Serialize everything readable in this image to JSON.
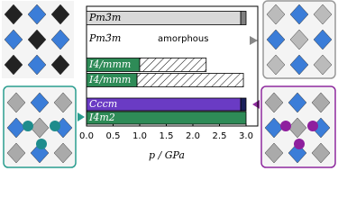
{
  "chart_data": {
    "type": "range-bar",
    "xlabel": "p / GPa",
    "xlim": [
      0,
      3
    ],
    "xticks": [
      {
        "value": 0,
        "label": "0.0"
      },
      {
        "value": 0.5,
        "label": "0.5"
      },
      {
        "value": 1,
        "label": "1.0"
      },
      {
        "value": 1.5,
        "label": "1.5"
      },
      {
        "value": 2,
        "label": "2.0"
      },
      {
        "value": 2.5,
        "label": "2.5"
      },
      {
        "value": 3,
        "label": "3.0"
      }
    ],
    "rows": [
      {
        "labels": [
          "Pm3̄m"
        ],
        "text_color": "#000000",
        "segments": [
          {
            "from": 0,
            "to": 2.9,
            "color": "#d9d9d9",
            "style": "solid"
          },
          {
            "from": 2.9,
            "to": 3,
            "color": "#808080",
            "style": "solid"
          }
        ]
      },
      {
        "labels": [
          "Pm3̄m",
          "amorphous"
        ],
        "text_color": "#000000",
        "segments": []
      },
      {
        "labels": [
          "I4/mmm"
        ],
        "text_color": "#ffffff",
        "segments": [
          {
            "from": 0,
            "to": 1,
            "color": "#2e8b57",
            "style": "solid"
          },
          {
            "from": 1,
            "to": 2.25,
            "color": "#000000",
            "style": "hatched"
          }
        ]
      },
      {
        "labels": [
          "I4/mmm"
        ],
        "text_color": "#ffffff",
        "segments": [
          {
            "from": 0,
            "to": 0.95,
            "color": "#2e8b57",
            "style": "solid"
          },
          {
            "from": 0.95,
            "to": 2.95,
            "color": "#000000",
            "style": "hatched"
          }
        ]
      },
      {
        "labels": [
          "Cccm"
        ],
        "text_color": "#ffffff",
        "segments": [
          {
            "from": 0,
            "to": 2.9,
            "color": "#6a3bc4",
            "style": "solid"
          },
          {
            "from": 2.9,
            "to": 3,
            "color": "#1a1f5c",
            "style": "solid"
          }
        ]
      },
      {
        "labels": [
          "I4̄m2"
        ],
        "text_color": "#ffffff",
        "segments": [
          {
            "from": 0,
            "to": 3,
            "color": "#2e8b57",
            "style": "solid"
          }
        ]
      }
    ]
  }
}
